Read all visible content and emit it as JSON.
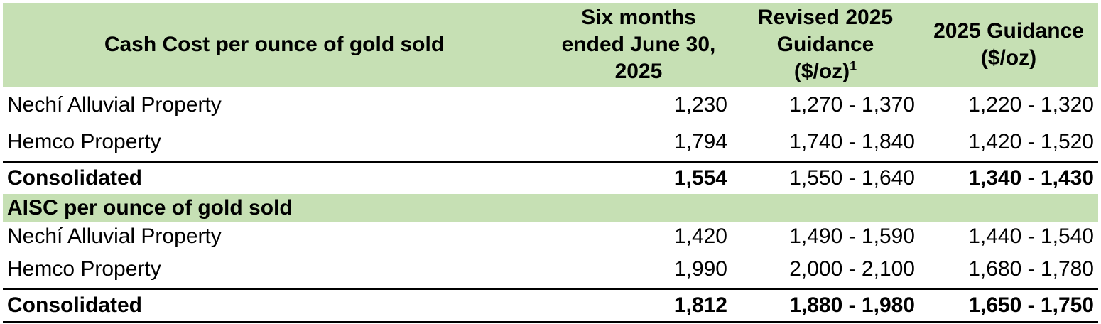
{
  "header": {
    "col1": "Cash Cost per ounce of gold sold",
    "col2_lines": [
      "Six months",
      "ended June 30,",
      "2025"
    ],
    "col3_lines": [
      "Revised 2025",
      "Guidance",
      "($/oz)"
    ],
    "col3_footnote": "1",
    "col4_lines": [
      "2025 Guidance",
      "($/oz)"
    ]
  },
  "cash_cost_rows": [
    {
      "label": "Nechí Alluvial Property",
      "six_months": "1,230",
      "revised": "1,270 - 1,370",
      "guidance": "1,220 - 1,320"
    },
    {
      "label": "Hemco Property",
      "six_months": "1,794",
      "revised": "1,740 - 1,840",
      "guidance": "1,420 - 1,520"
    }
  ],
  "cash_cost_total": {
    "label": "Consolidated",
    "six_months": "1,554",
    "revised": "1,550 - 1,640",
    "guidance": "1,340 - 1,430"
  },
  "aisc_section": {
    "label": "AISC per ounce of gold sold"
  },
  "aisc_rows": [
    {
      "label": "Nechí Alluvial Property",
      "six_months": "1,420",
      "revised": "1,490 - 1,590",
      "guidance": "1,440 - 1,540"
    },
    {
      "label": "Hemco Property",
      "six_months": "1,990",
      "revised": "2,000 - 2,100",
      "guidance": "1,680 - 1,780"
    }
  ],
  "aisc_total": {
    "label": "Consolidated",
    "six_months": "1,812",
    "revised": "1,880 - 1,980",
    "guidance": "1,650 - 1,750"
  },
  "colors": {
    "header_bg": "#c6e0b4",
    "rule": "#000000"
  }
}
